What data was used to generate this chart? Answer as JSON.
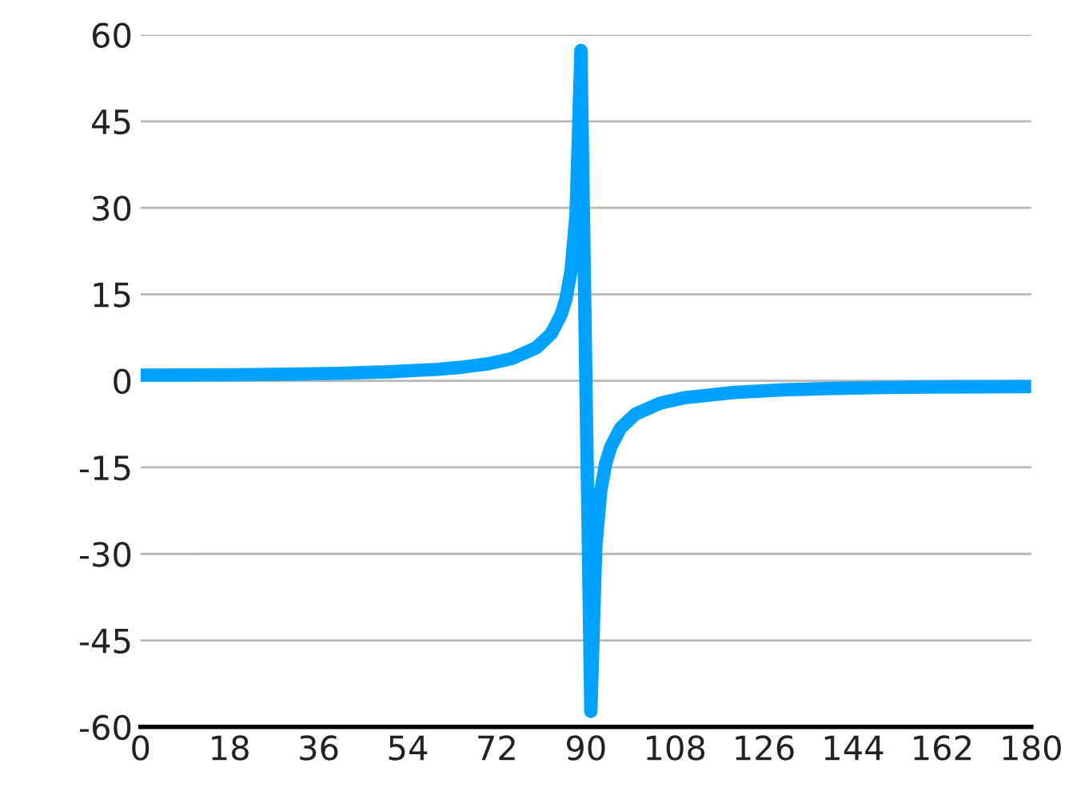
{
  "chart_data": {
    "type": "line",
    "xlim": [
      0,
      180
    ],
    "xticks": [
      0,
      18,
      36,
      54,
      72,
      90,
      108,
      126,
      144,
      162,
      180
    ],
    "ylim": [
      -60,
      60
    ],
    "yticks": [
      -60,
      -45,
      -30,
      -15,
      0,
      15,
      30,
      45,
      60
    ],
    "grid": "y",
    "marker": "none",
    "line_style": "solid",
    "series": [
      {
        "color": "#00a2ff",
        "x": [
          0,
          10,
          20,
          30,
          40,
          50,
          60,
          65,
          70,
          75,
          80,
          83,
          85,
          86,
          87,
          88,
          89,
          91,
          92,
          93,
          94,
          95,
          97,
          100,
          105,
          110,
          120,
          130,
          140,
          150,
          160,
          170,
          180
        ],
        "values": [
          1,
          1.02,
          1.06,
          1.15,
          1.31,
          1.56,
          2,
          2.37,
          2.92,
          3.86,
          5.76,
          8.2,
          11.5,
          14.3,
          19.1,
          28.7,
          57.3,
          -57.3,
          -28.7,
          -19.1,
          -14.3,
          -11.5,
          -8.2,
          -5.76,
          -3.86,
          -2.92,
          -2,
          -1.56,
          -1.31,
          -1.15,
          -1.06,
          -1.02,
          -1
        ]
      }
    ]
  }
}
